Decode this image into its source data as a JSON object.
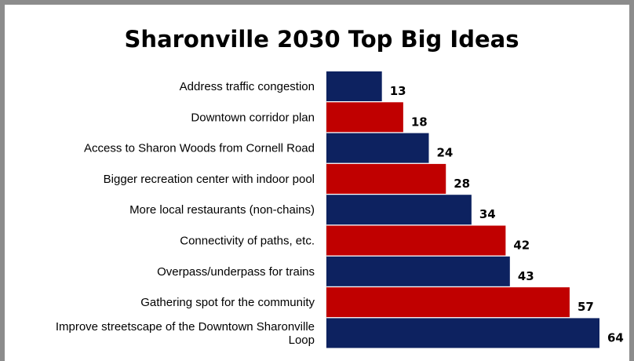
{
  "chart_data": {
    "type": "bar",
    "orientation": "horizontal",
    "title": "Sharonville 2030 Top Big Ideas",
    "categories": [
      "Address traffic congestion",
      "Downtown corridor plan",
      "Access to Sharon Woods from Cornell Road",
      "Bigger recreation center with indoor pool",
      "More local restaurants (non-chains)",
      "Connectivity of paths, etc.",
      "Overpass/underpass for trains",
      "Gathering spot for the community",
      "Improve streetscape of the Downtown Sharonville Loop"
    ],
    "category_lines": [
      [
        "Address traffic congestion"
      ],
      [
        "Downtown corridor plan"
      ],
      [
        "Access to Sharon Woods from Cornell Road"
      ],
      [
        "Bigger recreation center with indoor pool"
      ],
      [
        "More local restaurants (non-chains)"
      ],
      [
        "Connectivity of paths, etc."
      ],
      [
        "Overpass/underpass for trains"
      ],
      [
        "Gathering spot for the community"
      ],
      [
        "Improve streetscape of the Downtown Sharonville",
        "Loop"
      ]
    ],
    "values": [
      13,
      18,
      24,
      28,
      34,
      42,
      43,
      57,
      64
    ],
    "bar_colors": [
      "#0d2260",
      "#c00000",
      "#0d2260",
      "#c00000",
      "#0d2260",
      "#c00000",
      "#0d2260",
      "#c00000",
      "#0d2260"
    ],
    "data_labels": true,
    "grid": false,
    "legend": "none",
    "xlim": [
      0,
      64
    ]
  }
}
